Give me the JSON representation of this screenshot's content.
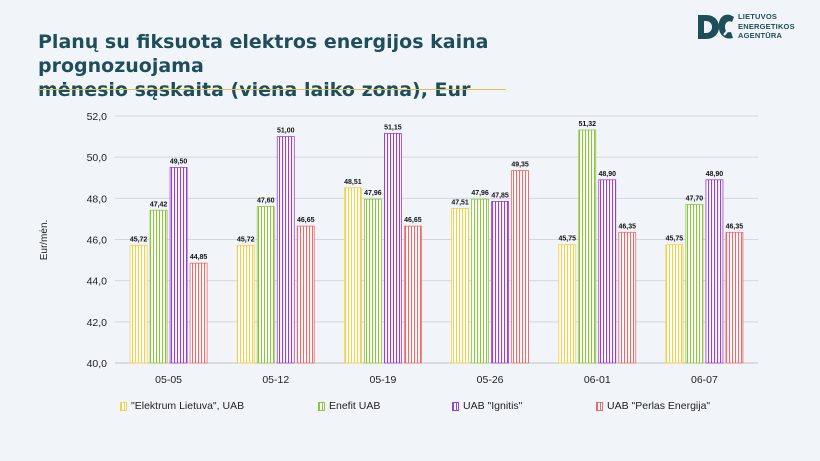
{
  "title_line1": "Planų su fiksuota elektros energijos kaina prognozuojama",
  "title_line2": "mėnesio sąskaita (viena laiko zona), Eur",
  "logo": {
    "line1": "LIETUVOS",
    "line2": "ENERGETIKOS",
    "line3": "AGENTŪRA"
  },
  "chart_data": {
    "type": "bar",
    "title": "Planų su fiksuota elektros energijos kaina prognozuojama mėnesio sąskaita (viena laiko zona), Eur",
    "ylabel": "Eur/mėn.",
    "xlabel": "",
    "ylim": [
      40,
      52
    ],
    "ytick_step": 2,
    "ytick_labels": [
      "40,0",
      "42,0",
      "44,0",
      "46,0",
      "48,0",
      "50,0",
      "52,0"
    ],
    "grid": true,
    "legend_position": "bottom",
    "categories": [
      "05-05",
      "05-12",
      "05-19",
      "05-26",
      "06-01",
      "06-07"
    ],
    "series": [
      {
        "name": "\"Elektrum Lietuva\", UAB",
        "color": "#f2cf4d",
        "values": [
          45.72,
          45.72,
          48.51,
          47.51,
          45.75,
          45.75
        ],
        "labels": [
          "45,72",
          "45,72",
          "48,51",
          "47,51",
          "45,75",
          "45,75"
        ]
      },
      {
        "name": "Enefit UAB",
        "color": "#8cc63f",
        "values": [
          47.42,
          47.6,
          47.96,
          47.96,
          51.32,
          47.7
        ],
        "labels": [
          "47,42",
          "47,60",
          "47,96",
          "47,96",
          "51,32",
          "47,70"
        ]
      },
      {
        "name": "UAB \"Ignitis\"",
        "color": "#9b3fd6",
        "values": [
          49.5,
          51.0,
          51.15,
          47.85,
          48.9,
          48.9
        ],
        "labels": [
          "49,50",
          "51,00",
          "51,15",
          "47,85",
          "48,90",
          "48,90"
        ]
      },
      {
        "name": "UAB \"Perlas Energija\"",
        "color": "#ef6b6b",
        "values": [
          44.85,
          46.65,
          46.65,
          49.35,
          46.35,
          46.35
        ],
        "labels": [
          "44,85",
          "46,65",
          "46,65",
          "49,35",
          "46,35",
          "46,35"
        ]
      }
    ]
  }
}
